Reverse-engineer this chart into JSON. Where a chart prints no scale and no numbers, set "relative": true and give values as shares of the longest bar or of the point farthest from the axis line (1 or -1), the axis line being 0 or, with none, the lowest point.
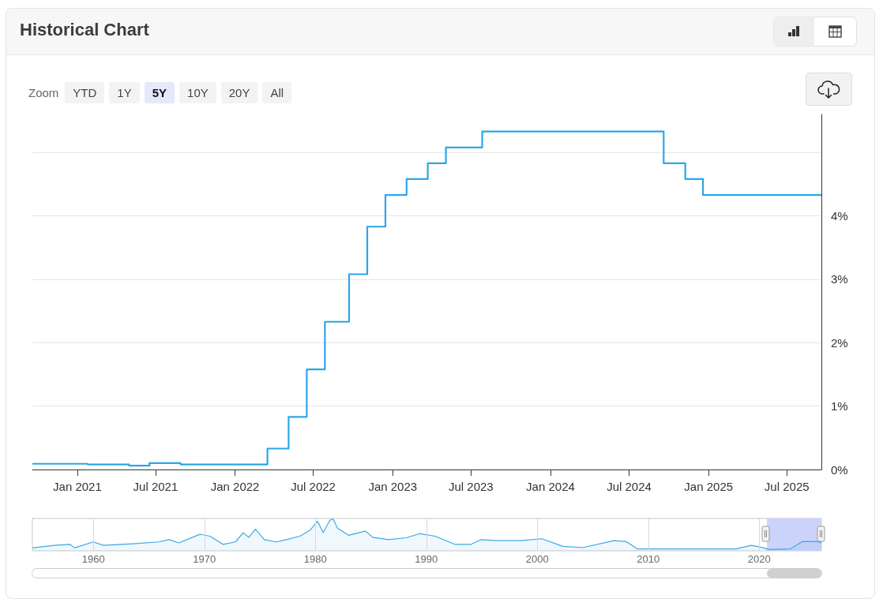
{
  "chart_data": [
    {
      "type": "step",
      "title": "Historical Chart",
      "annotations": [
        "Zoom",
        "YTD",
        "1Y",
        "5Y",
        "10Y",
        "20Y",
        "All"
      ],
      "x": [
        "2020-09-19",
        "2021-01-25",
        "2021-05-01",
        "2021-06-17",
        "2021-08-28",
        "2022-03-17",
        "2022-05-05",
        "2022-06-16",
        "2022-07-28",
        "2022-09-22",
        "2022-11-03",
        "2022-12-15",
        "2023-02-02",
        "2023-03-23",
        "2023-05-04",
        "2023-07-27",
        "2024-09-19",
        "2024-11-08",
        "2024-12-19",
        "2025-09-19"
      ],
      "series": [
        {
          "color": "#2ca6e8",
          "values": [
            0.09,
            0.08,
            0.06,
            0.1,
            0.08,
            0.33,
            0.83,
            1.58,
            2.33,
            3.08,
            3.83,
            4.33,
            4.58,
            4.83,
            5.08,
            5.33,
            4.83,
            4.58,
            4.33,
            4.33
          ]
        }
      ],
      "xlim": [
        "2020-09-19",
        "2025-09-19"
      ],
      "xticks": [
        {
          "value": "2021-01-01",
          "label": "Jan 2021"
        },
        {
          "value": "2021-07-01",
          "label": "Jul 2021"
        },
        {
          "value": "2022-01-01",
          "label": "Jan 2022"
        },
        {
          "value": "2022-07-01",
          "label": "Jul 2022"
        },
        {
          "value": "2023-01-01",
          "label": "Jan 2023"
        },
        {
          "value": "2023-07-01",
          "label": "Jul 2023"
        },
        {
          "value": "2024-01-01",
          "label": "Jan 2024"
        },
        {
          "value": "2024-07-01",
          "label": "Jul 2024"
        },
        {
          "value": "2025-01-01",
          "label": "Jan 2025"
        },
        {
          "value": "2025-07-01",
          "label": "Jul 2025"
        }
      ],
      "ylim": [
        0,
        5.6
      ],
      "yticks": [
        {
          "value": 0,
          "label": "0%"
        },
        {
          "value": 1,
          "label": "1%"
        },
        {
          "value": 2,
          "label": "2%"
        },
        {
          "value": 3,
          "label": "3%"
        },
        {
          "value": 4,
          "label": "4%"
        },
        {
          "value": 5,
          "label": null
        }
      ],
      "grid": "y",
      "marker": "none",
      "line_style": "solid"
    },
    {
      "type": "area",
      "relative": true,
      "x": [
        1954.5,
        1956.5,
        1957.9,
        1958.3,
        1960,
        1960.9,
        1963.6,
        1965.9,
        1966.8,
        1967.7,
        1969.6,
        1970.5,
        1971.7,
        1972.8,
        1973.5,
        1974,
        1974.6,
        1975.4,
        1976.5,
        1977.4,
        1978.6,
        1979.5,
        1980.2,
        1980.7,
        1981.3,
        1981.6,
        1982,
        1983,
        1984.5,
        1985.2,
        1986.6,
        1988.2,
        1989.4,
        1990.8,
        1992.6,
        1994,
        1994.9,
        1996.3,
        1998.6,
        2000.4,
        2002.3,
        2004.1,
        2006.9,
        2008,
        2009,
        2017.9,
        2019.3,
        2020.4,
        2020.9,
        2022.8,
        2023.9,
        2025.3,
        2025.6
      ],
      "series": [
        {
          "color": "#3aa9e4",
          "values": [
            0.09,
            0.17,
            0.2,
            0.09,
            0.28,
            0.17,
            0.22,
            0.28,
            0.35,
            0.25,
            0.52,
            0.46,
            0.2,
            0.28,
            0.57,
            0.42,
            0.68,
            0.35,
            0.28,
            0.35,
            0.46,
            0.64,
            0.93,
            0.57,
            0.96,
            1,
            0.71,
            0.49,
            0.62,
            0.42,
            0.35,
            0.41,
            0.54,
            0.46,
            0.2,
            0.2,
            0.35,
            0.32,
            0.32,
            0.38,
            0.14,
            0.1,
            0.32,
            0.29,
            0.06,
            0.06,
            0.17,
            0.09,
            0.04,
            0.06,
            0.29,
            0.29,
            0.25
          ]
        }
      ],
      "xlim": [
        1954.5,
        2025.6
      ],
      "xticks": [
        1960,
        1970,
        1980,
        1990,
        2000,
        2010,
        2020
      ],
      "bands": [
        {
          "axis": "x",
          "from": 2020.7,
          "to": 2025.6,
          "color": "#ccd3fb"
        }
      ],
      "grid": "x",
      "marker": "none",
      "line_style": "solid"
    }
  ]
}
